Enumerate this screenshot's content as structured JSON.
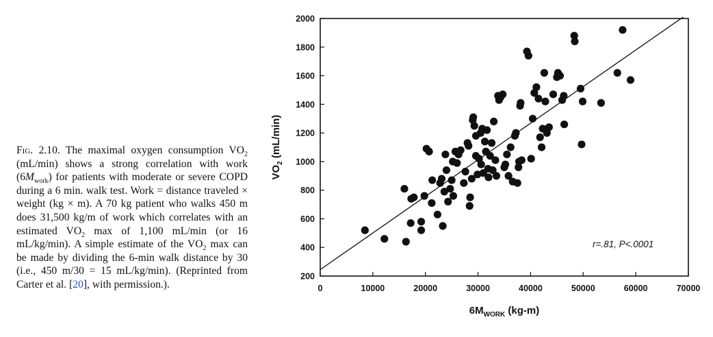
{
  "caption": {
    "fig_label": "Fig.",
    "fig_number": "2.10.",
    "p1": "The maximal oxygen consumption VO",
    "sub_2": "2",
    "p2": "(mL/min) shows a strong correlation with work (6",
    "m_letter": "M",
    "sub_work": "work",
    "p3": ") for patients with moderate or severe COPD during a 6 min. walk test. Work = distance traveled × weight (kg × m). A 70 kg patient who walks 450 m does 31,500 kg/m of work which correlates with an estimated VO",
    "p4": "max of 1,100 mL/min (or 16 mL/kg/min). A simple estimate of the VO",
    "p5": "max can be made by dividing the 6-min walk distance by 30 (i.e., 450 m/30 = 15 mL/kg/min). (Reprinted from Carter et al. [",
    "ref": "20",
    "p6": "], with permission.)."
  },
  "chart_data": {
    "type": "scatter",
    "xlabel_main": "6M",
    "xlabel_sub": "WORK",
    "xlabel_unit": " (kg-m)",
    "ylabel_main": "VO",
    "ylabel_sub": "2",
    "ylabel_unit": " (mL/min)",
    "xlim": [
      0,
      70000
    ],
    "ylim": [
      200,
      2000
    ],
    "xticks": [
      0,
      10000,
      20000,
      30000,
      40000,
      50000,
      60000,
      70000
    ],
    "yticks": [
      200,
      400,
      600,
      800,
      1000,
      1200,
      1400,
      1600,
      1800,
      2000
    ],
    "annotation": "r=.81, P<.0001",
    "fit_line": {
      "x": [
        0,
        69000
      ],
      "y": [
        245,
        2010
      ]
    },
    "points": [
      [
        8500,
        520
      ],
      [
        12200,
        460
      ],
      [
        16300,
        440
      ],
      [
        16000,
        810
      ],
      [
        17300,
        740
      ],
      [
        17200,
        570
      ],
      [
        17800,
        750
      ],
      [
        19200,
        580
      ],
      [
        19200,
        520
      ],
      [
        19800,
        760
      ],
      [
        20200,
        1090
      ],
      [
        20700,
        1070
      ],
      [
        21300,
        870
      ],
      [
        21200,
        710
      ],
      [
        22300,
        630
      ],
      [
        22800,
        850
      ],
      [
        23100,
        880
      ],
      [
        23300,
        550
      ],
      [
        23600,
        790
      ],
      [
        23800,
        1050
      ],
      [
        24000,
        940
      ],
      [
        24300,
        720
      ],
      [
        24700,
        810
      ],
      [
        25000,
        870
      ],
      [
        25200,
        1000
      ],
      [
        25300,
        760
      ],
      [
        25700,
        1070
      ],
      [
        26000,
        990
      ],
      [
        26300,
        1050
      ],
      [
        26700,
        1080
      ],
      [
        27300,
        850
      ],
      [
        27600,
        930
      ],
      [
        28000,
        1130
      ],
      [
        28200,
        1110
      ],
      [
        28400,
        690
      ],
      [
        28500,
        750
      ],
      [
        28800,
        880
      ],
      [
        29000,
        1290
      ],
      [
        29100,
        1310
      ],
      [
        29300,
        1250
      ],
      [
        29600,
        1180
      ],
      [
        29600,
        1040
      ],
      [
        29900,
        910
      ],
      [
        30200,
        1020
      ],
      [
        30500,
        1200
      ],
      [
        30600,
        980
      ],
      [
        30800,
        1230
      ],
      [
        31000,
        920
      ],
      [
        31300,
        1140
      ],
      [
        31500,
        1070
      ],
      [
        31700,
        1220
      ],
      [
        31900,
        950
      ],
      [
        32000,
        890
      ],
      [
        32300,
        1040
      ],
      [
        32600,
        1130
      ],
      [
        32800,
        940
      ],
      [
        33000,
        1280
      ],
      [
        33300,
        1010
      ],
      [
        33500,
        900
      ],
      [
        33800,
        1460
      ],
      [
        34000,
        1430
      ],
      [
        34300,
        1450
      ],
      [
        34700,
        1470
      ],
      [
        35000,
        960
      ],
      [
        35200,
        980
      ],
      [
        35500,
        1050
      ],
      [
        35800,
        900
      ],
      [
        36200,
        1100
      ],
      [
        36600,
        860
      ],
      [
        37000,
        1180
      ],
      [
        37200,
        1200
      ],
      [
        37500,
        850
      ],
      [
        37700,
        960
      ],
      [
        37800,
        1000
      ],
      [
        38100,
        1410
      ],
      [
        38000,
        1390
      ],
      [
        38300,
        1010
      ],
      [
        39300,
        1770
      ],
      [
        39600,
        1740
      ],
      [
        40100,
        1020
      ],
      [
        40400,
        1300
      ],
      [
        40700,
        1480
      ],
      [
        41100,
        1520
      ],
      [
        41500,
        1440
      ],
      [
        41800,
        1170
      ],
      [
        42100,
        1100
      ],
      [
        42300,
        1230
      ],
      [
        42600,
        1620
      ],
      [
        42800,
        1420
      ],
      [
        43100,
        1200
      ],
      [
        43500,
        1240
      ],
      [
        44300,
        1470
      ],
      [
        45000,
        1590
      ],
      [
        45200,
        1620
      ],
      [
        45600,
        1600
      ],
      [
        46000,
        1430
      ],
      [
        46300,
        1460
      ],
      [
        46400,
        1260
      ],
      [
        48300,
        1880
      ],
      [
        48400,
        1840
      ],
      [
        49500,
        1510
      ],
      [
        49700,
        1120
      ],
      [
        49900,
        1420
      ],
      [
        53400,
        1410
      ],
      [
        56500,
        1620
      ],
      [
        57500,
        1920
      ],
      [
        59000,
        1570
      ]
    ]
  }
}
